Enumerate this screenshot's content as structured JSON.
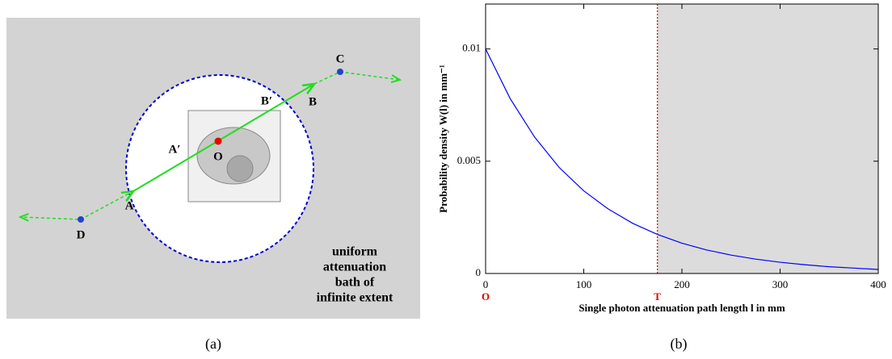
{
  "diagram": {
    "caption": "(a)",
    "points": {
      "O": "O",
      "A": "A",
      "A_prime": "A′",
      "B": "B",
      "B_prime": "B′",
      "C": "C",
      "D": "D"
    },
    "bath_text": [
      "uniform",
      "attenuation",
      "bath of",
      "infinite extent"
    ]
  },
  "chart_data": {
    "type": "line",
    "caption": "(b)",
    "xlabel": "Single photon attenuation path length l in mm",
    "ylabel": "Probability density W(l) in mm⁻¹",
    "x": [
      0,
      25,
      50,
      75,
      100,
      125,
      150,
      175,
      200,
      225,
      250,
      275,
      300,
      325,
      350,
      375,
      400
    ],
    "values": [
      0.01,
      0.00779,
      0.00607,
      0.00472,
      0.00368,
      0.00287,
      0.00223,
      0.00174,
      0.00135,
      0.00105,
      0.00082,
      0.00064,
      0.0005,
      0.00039,
      0.0003,
      0.00024,
      0.00018
    ],
    "color": "#0000ff",
    "xlim": [
      0,
      400
    ],
    "xticks": [
      0,
      100,
      200,
      300,
      400
    ],
    "ylim": [
      0,
      0.012
    ],
    "yticks": [
      0,
      0.005,
      0.01
    ],
    "annotations": [
      {
        "x": 0,
        "text": "O"
      },
      {
        "x": 175,
        "text": "T"
      }
    ],
    "annotation_color": "#e00000",
    "shade_color": "#dcdcdc"
  }
}
